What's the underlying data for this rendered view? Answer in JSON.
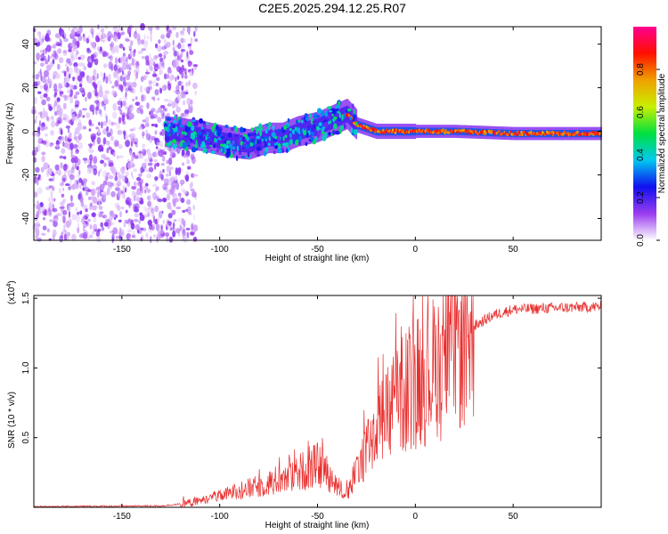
{
  "title": "C2E5.2025.294.12.25.R07",
  "chart_data": [
    {
      "type": "heatmap",
      "xlabel": "Height of straight line (km)",
      "ylabel": "Frequency (Hz)",
      "xlim": [
        -195,
        95
      ],
      "ylim": [
        -50,
        48
      ],
      "xticks": [
        -150,
        -100,
        -50,
        0,
        50
      ],
      "yticks": [
        -40,
        -20,
        0,
        20,
        40
      ],
      "colorbar": {
        "label": "Normalized spectral amplitude",
        "range": [
          0,
          1
        ],
        "ticks": [
          "0.0",
          "0.2",
          "0.4",
          "0.6",
          "0.8"
        ],
        "colormap": [
          "#ffffff",
          "#9a3cf0",
          "#1010f0",
          "#00c8f0",
          "#00e040",
          "#c8f000",
          "#f0a000",
          "#ff1000",
          "#ff0090"
        ]
      },
      "ridge": {
        "x": [
          -128,
          -110,
          -95,
          -85,
          -75,
          -68,
          -60,
          -50,
          -40,
          -35,
          -30,
          -20,
          0,
          20,
          50,
          95
        ],
        "y": [
          0,
          -2,
          -5,
          -6,
          -3,
          -3,
          0,
          2,
          6,
          8,
          3,
          0,
          0,
          0,
          -1,
          -1
        ]
      },
      "grid": false
    },
    {
      "type": "line",
      "series": [
        {
          "color": "#e83030"
        }
      ],
      "xlabel": "Height of straight line (km)",
      "ylabel": "SNR (10 * v/v)",
      "yscale_label": "(x10",
      "yscale_exp": "4",
      "xlim": [
        -195,
        95
      ],
      "ylim": [
        0,
        1.52
      ],
      "xticks": [
        -150,
        -100,
        -50,
        0,
        50
      ],
      "yticks": [
        "0.5",
        "1.0",
        "1.5"
      ],
      "envelope": {
        "x": [
          -195,
          -130,
          -115,
          -100,
          -90,
          -80,
          -70,
          -60,
          -50,
          -45,
          -40,
          -35,
          -30,
          -25,
          -20,
          -10,
          0,
          10,
          15,
          20,
          30,
          40,
          50,
          70,
          95
        ],
        "y": [
          0.005,
          0.01,
          0.03,
          0.08,
          0.12,
          0.15,
          0.2,
          0.25,
          0.3,
          0.25,
          0.15,
          0.1,
          0.25,
          0.45,
          0.55,
          0.75,
          0.9,
          1.0,
          1.05,
          1.15,
          1.3,
          1.38,
          1.42,
          1.43,
          1.44
        ]
      },
      "grid": false
    }
  ]
}
